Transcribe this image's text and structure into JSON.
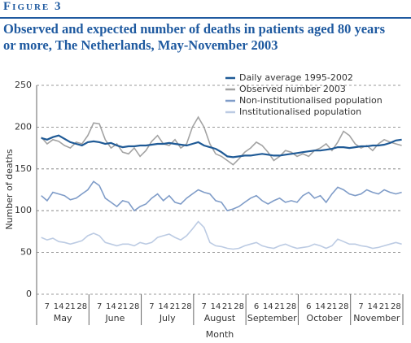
{
  "figure_label": "Figure 3",
  "chart_data": {
    "type": "line",
    "title": "Observed and expected number of deaths in patients aged 80 years or more, The Netherlands, May-November 2003",
    "y_label": "Number of deaths",
    "x_label": "Month",
    "months": [
      "May",
      "June",
      "July",
      "August",
      "September",
      "October",
      "November"
    ],
    "categories": [
      null,
      "7",
      null,
      "14",
      null,
      "21",
      null,
      "28",
      null,
      null,
      "7",
      null,
      "14",
      null,
      "21",
      null,
      "28",
      null,
      null,
      "7",
      null,
      "14",
      null,
      "21",
      null,
      "28",
      null,
      null,
      "7",
      null,
      "14",
      null,
      "21",
      null,
      "28",
      null,
      null,
      "6",
      null,
      "14",
      null,
      "21",
      null,
      "28",
      null,
      null,
      "6",
      null,
      "14",
      null,
      "21",
      null,
      "28",
      null,
      null,
      "7",
      null,
      "14",
      null,
      "21",
      null,
      "28",
      null
    ],
    "ylim": [
      0,
      250
    ],
    "yticks": [
      0,
      50,
      100,
      150,
      200,
      250
    ],
    "grid": true,
    "legend": "top-right",
    "series": [
      {
        "name": "Daily average 1995-2002",
        "color": "#1f5a96",
        "values": [
          187,
          185,
          188,
          190,
          186,
          182,
          180,
          178,
          182,
          183,
          182,
          180,
          181,
          178,
          176,
          177,
          177,
          178,
          178,
          179,
          180,
          180,
          181,
          180,
          179,
          178,
          180,
          182,
          178,
          176,
          174,
          170,
          165,
          164,
          165,
          166,
          166,
          167,
          168,
          167,
          166,
          166,
          167,
          168,
          169,
          170,
          171,
          172,
          172,
          173,
          174,
          176,
          176,
          175,
          176,
          177,
          177,
          178,
          178,
          179,
          181,
          184,
          185
        ]
      },
      {
        "name": "Observed number 2003",
        "color": "#a3a3a3",
        "values": [
          188,
          180,
          185,
          183,
          178,
          175,
          182,
          180,
          190,
          205,
          204,
          185,
          175,
          180,
          170,
          168,
          175,
          165,
          172,
          183,
          190,
          180,
          178,
          185,
          175,
          180,
          200,
          212,
          200,
          180,
          168,
          165,
          160,
          155,
          162,
          170,
          175,
          182,
          178,
          170,
          160,
          165,
          172,
          170,
          165,
          168,
          165,
          172,
          175,
          180,
          172,
          182,
          195,
          190,
          180,
          175,
          178,
          172,
          180,
          185,
          182,
          180,
          178
        ]
      },
      {
        "name": "Non-institutionalised population",
        "color": "#7f9cc8",
        "values": [
          118,
          112,
          122,
          120,
          118,
          113,
          115,
          120,
          125,
          135,
          130,
          115,
          110,
          105,
          112,
          110,
          100,
          105,
          108,
          115,
          120,
          112,
          118,
          110,
          108,
          115,
          120,
          125,
          122,
          120,
          112,
          110,
          100,
          102,
          105,
          110,
          115,
          118,
          112,
          108,
          112,
          115,
          110,
          112,
          110,
          118,
          122,
          115,
          118,
          110,
          120,
          128,
          125,
          120,
          118,
          120,
          125,
          122,
          120,
          125,
          122,
          120,
          122
        ]
      },
      {
        "name": "Institutionalised population",
        "color": "#bccbe3",
        "values": [
          68,
          65,
          67,
          63,
          62,
          60,
          62,
          64,
          70,
          73,
          70,
          62,
          60,
          58,
          60,
          60,
          58,
          62,
          60,
          62,
          68,
          70,
          72,
          68,
          65,
          70,
          78,
          87,
          80,
          62,
          58,
          57,
          55,
          54,
          55,
          58,
          60,
          62,
          58,
          56,
          55,
          58,
          60,
          57,
          55,
          56,
          57,
          60,
          58,
          55,
          58,
          66,
          63,
          60,
          60,
          58,
          57,
          55,
          56,
          58,
          60,
          62,
          60
        ]
      }
    ]
  }
}
